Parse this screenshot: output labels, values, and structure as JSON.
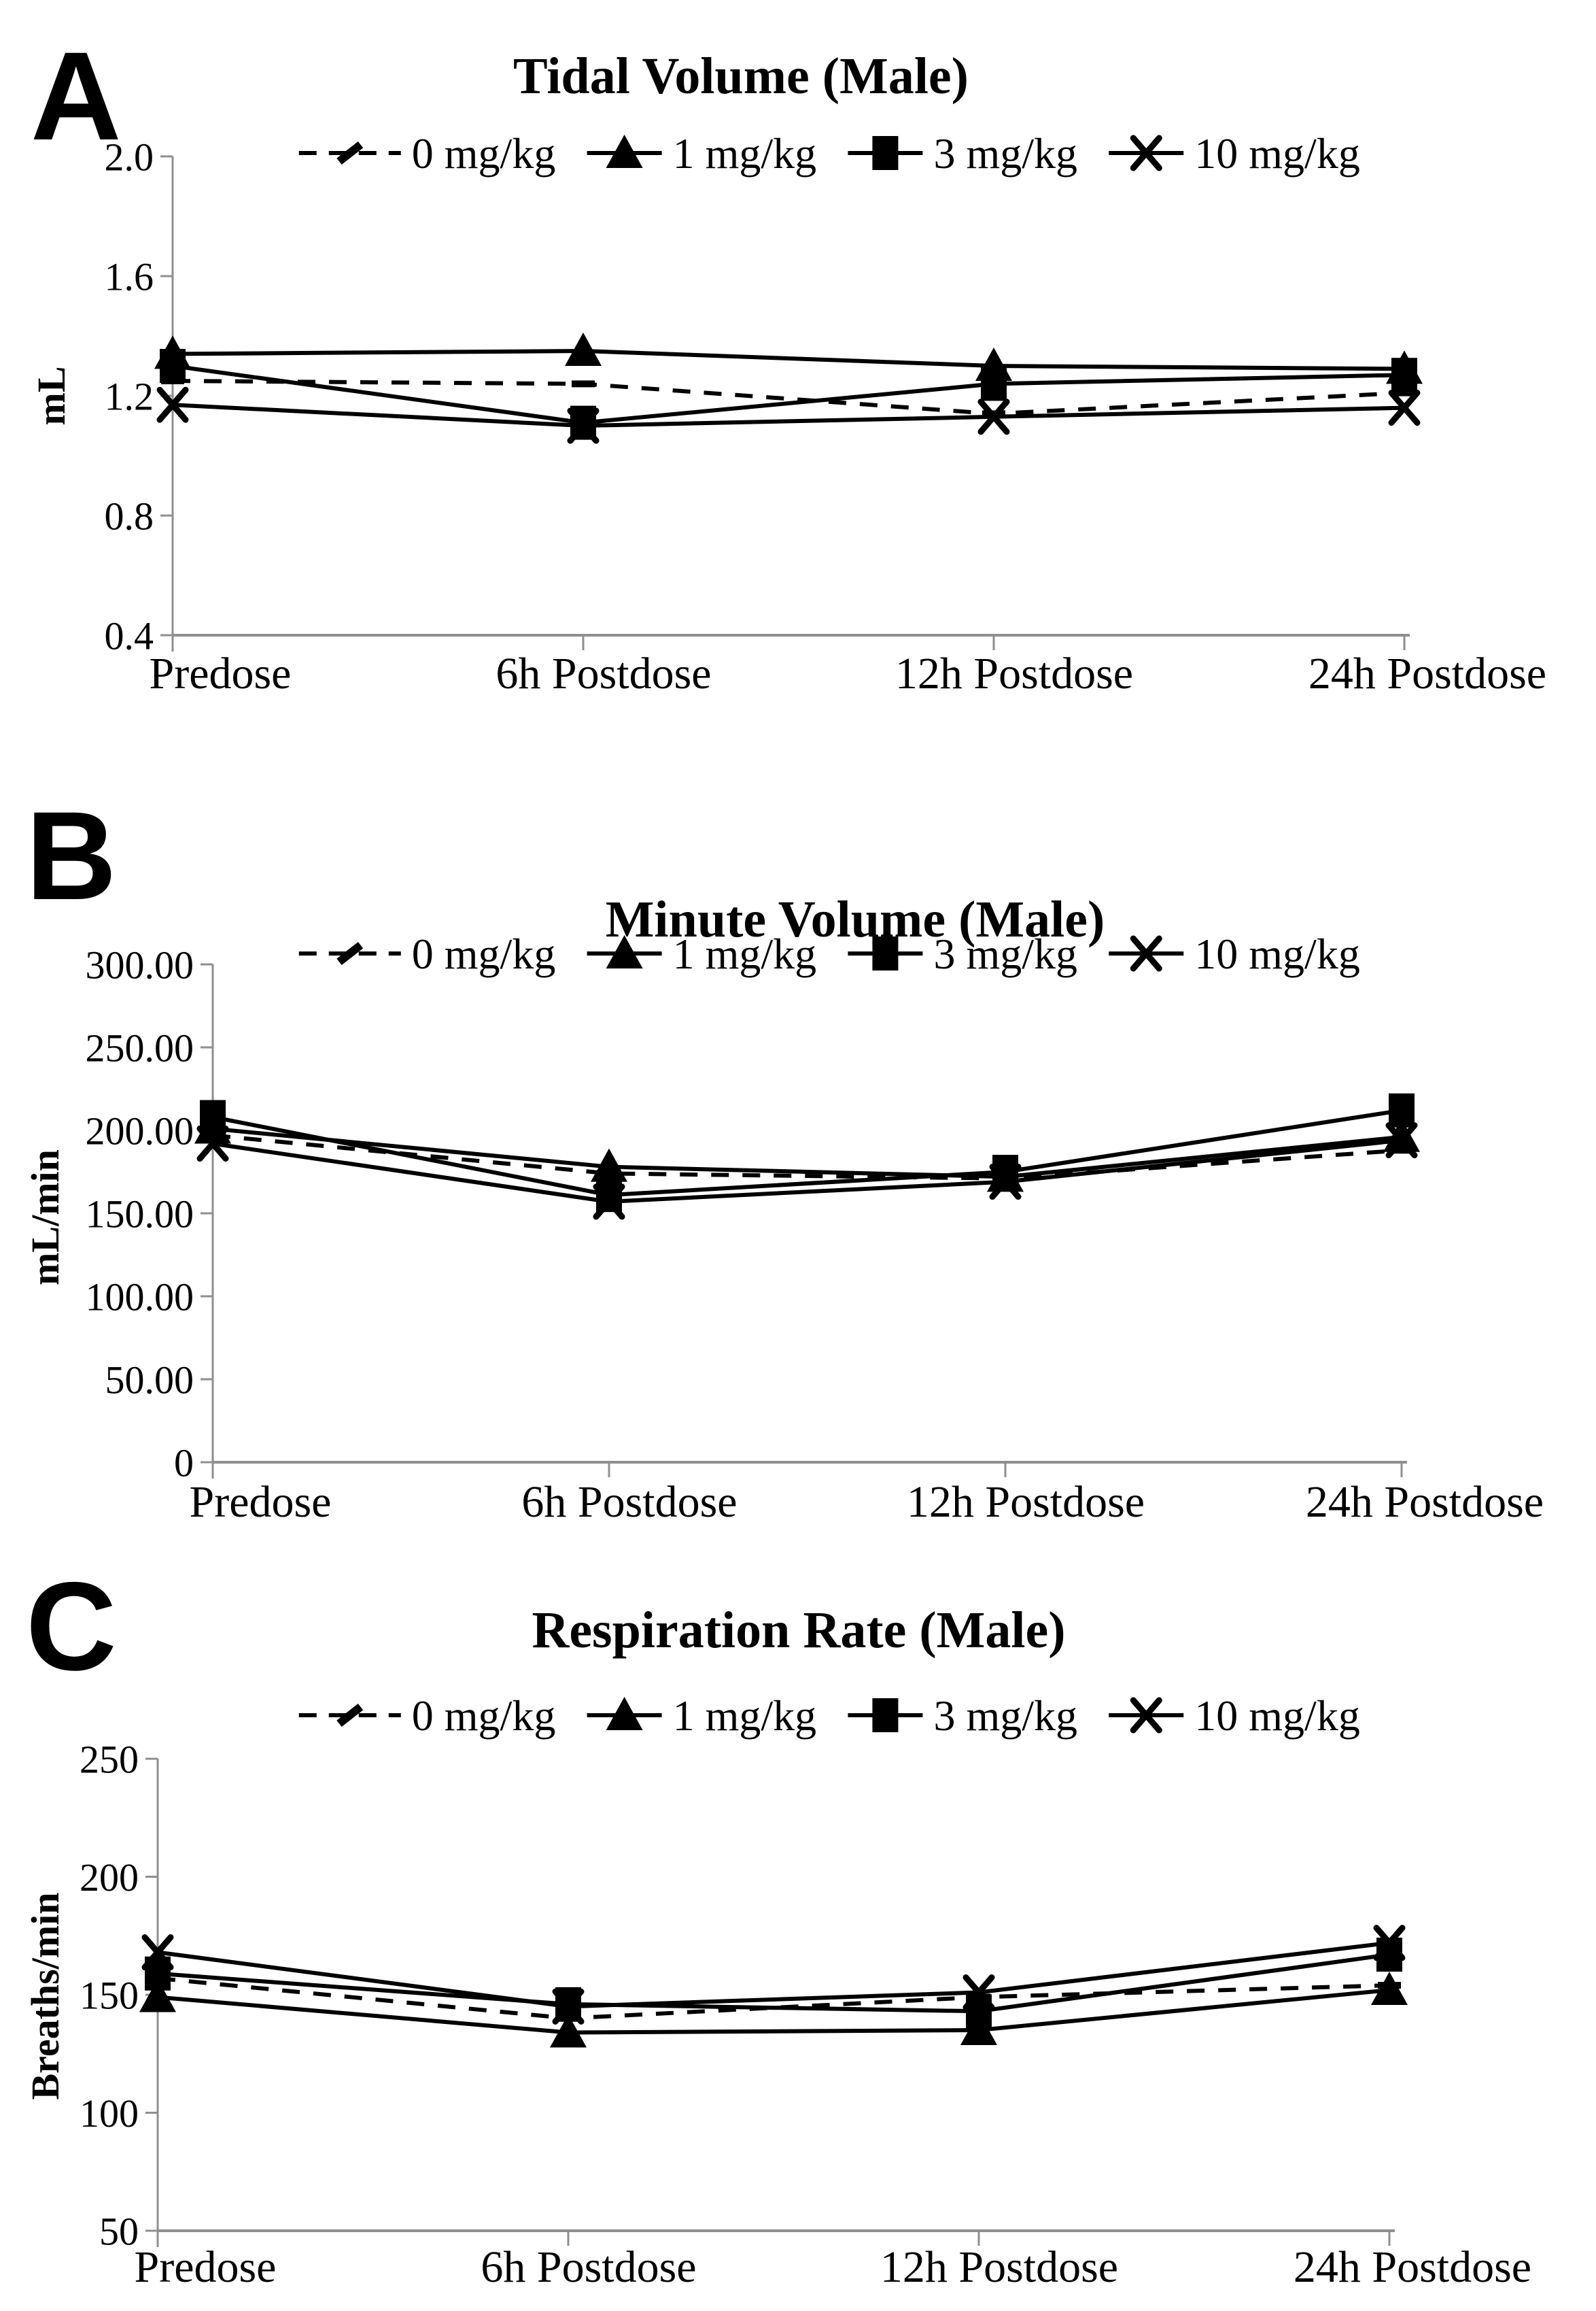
{
  "figure": {
    "description": "Three stacked line charts of respiratory safety pharmacology endpoints in males",
    "colors": {
      "series": "#000000",
      "axis": "#8f8f8f",
      "text": "#000000",
      "background": "#ffffff"
    }
  },
  "chart_data": [
    {
      "type": "line",
      "panel": "A",
      "title": "Tidal Volume (Male)",
      "xlabel": "",
      "ylabel": "mL",
      "categories": [
        "Predose",
        "6h Postdose",
        "12h Postdose",
        "24h Postdose"
      ],
      "series": [
        {
          "name": "0 mg/kg",
          "line": "dashed",
          "marker": "dash",
          "values": [
            1.25,
            1.24,
            1.14,
            1.21
          ]
        },
        {
          "name": "1 mg/kg",
          "line": "solid",
          "marker": "triangle",
          "values": [
            1.34,
            1.35,
            1.3,
            1.29
          ]
        },
        {
          "name": "3 mg/kg",
          "line": "solid",
          "marker": "square",
          "values": [
            1.3,
            1.11,
            1.24,
            1.27
          ]
        },
        {
          "name": "10 mg/kg",
          "line": "solid",
          "marker": "x",
          "values": [
            1.17,
            1.1,
            1.13,
            1.16
          ]
        }
      ],
      "ylim": [
        0.4,
        2.0
      ],
      "yticks": [
        2.0,
        1.6,
        1.2,
        0.8,
        0.4
      ],
      "ytick_labels": [
        "2.0",
        "1.6",
        "1.2",
        "0.8",
        "0.4"
      ],
      "grid": false,
      "legend_position": "top"
    },
    {
      "type": "line",
      "panel": "B",
      "title": "Minute Volume (Male)",
      "xlabel": "",
      "ylabel": "mL/min",
      "categories": [
        "Predose",
        "6h Postdose",
        "12h Postdose",
        "24h Postdose"
      ],
      "series": [
        {
          "name": "0 mg/kg",
          "line": "dashed",
          "marker": "dash",
          "values": [
            197,
            174,
            171,
            188
          ]
        },
        {
          "name": "1 mg/kg",
          "line": "solid",
          "marker": "triangle",
          "values": [
            201,
            178,
            172,
            196
          ]
        },
        {
          "name": "3 mg/kg",
          "line": "solid",
          "marker": "square",
          "values": [
            208,
            161,
            175,
            212
          ]
        },
        {
          "name": "10 mg/kg",
          "line": "solid",
          "marker": "x",
          "values": [
            192,
            157,
            169,
            194
          ]
        }
      ],
      "ylim": [
        0,
        300
      ],
      "yticks": [
        300,
        250,
        200,
        150,
        100,
        50,
        0
      ],
      "ytick_labels": [
        "300.00",
        "250.00",
        "200.00",
        "150.00",
        "100.00",
        "50.00",
        "0"
      ],
      "grid": false,
      "legend_position": "top"
    },
    {
      "type": "line",
      "panel": "C",
      "title": "Respiration Rate (Male)",
      "xlabel": "",
      "ylabel": "Breaths/min",
      "categories": [
        "Predose",
        "6h Postdose",
        "12h Postdose",
        "24h Postdose"
      ],
      "series": [
        {
          "name": "0 mg/kg",
          "line": "dashed",
          "marker": "dash",
          "values": [
            157,
            140,
            149,
            154
          ]
        },
        {
          "name": "1 mg/kg",
          "line": "solid",
          "marker": "triangle",
          "values": [
            149,
            134,
            135,
            152
          ]
        },
        {
          "name": "3 mg/kg",
          "line": "solid",
          "marker": "square",
          "values": [
            159,
            146,
            143,
            167
          ]
        },
        {
          "name": "10 mg/kg",
          "line": "solid",
          "marker": "x",
          "values": [
            168,
            145,
            151,
            172
          ]
        }
      ],
      "ylim": [
        50,
        250
      ],
      "yticks": [
        250,
        200,
        150,
        100,
        50
      ],
      "ytick_labels": [
        "250",
        "200",
        "150",
        "100",
        "50"
      ],
      "grid": false,
      "legend_position": "top"
    }
  ]
}
